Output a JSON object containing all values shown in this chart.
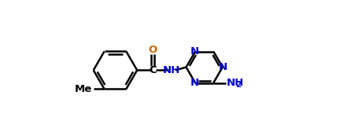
{
  "bg_color": "#ffffff",
  "bond_color": "#000000",
  "n_color": "#0000cc",
  "o_color": "#cc6600",
  "text_color": "#000000",
  "line_width": 1.8,
  "figsize": [
    4.51,
    1.77
  ],
  "dpi": 100,
  "xlim": [
    0,
    9
  ],
  "ylim": [
    0,
    3.54
  ]
}
